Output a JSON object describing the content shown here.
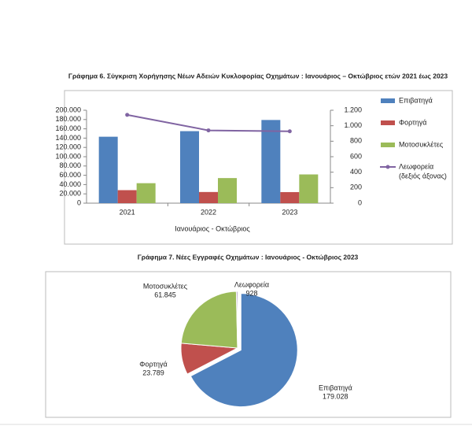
{
  "chart_data": [
    {
      "type": "bar",
      "title": "Γράφημα 6. Σύγκριση Χορήγησης Νέων Αδειών Κυκλοφορίας Οχημάτων : Ιανουάριος –  Οκτώβριος ετών 2021 έως 2023",
      "x_label": "Ιανουάριος - Οκτώβριος",
      "categories": [
        "2021",
        "2022",
        "2023"
      ],
      "series": [
        {
          "name": "Επιβατηγά",
          "color": "#4f81bd",
          "values": [
            143000,
            155000,
            179028
          ]
        },
        {
          "name": "Φορτηγά",
          "color": "#c0504d",
          "values": [
            28000,
            24000,
            23789
          ]
        },
        {
          "name": "Μοτοσυκλέτες",
          "color": "#9bbb59",
          "values": [
            43000,
            54000,
            61845
          ]
        },
        {
          "name": "Λεωφορεία",
          "legend_note": "(δεξιός άξονας)",
          "type": "line",
          "axis": "y2",
          "color": "#8064a2",
          "values": [
            1140,
            940,
            928
          ]
        }
      ],
      "ylim": [
        0,
        200000
      ],
      "yticks": [
        0,
        {
          "value": 20000,
          "label": "20.000"
        },
        {
          "value": 40000,
          "label": "40.000"
        },
        {
          "value": 60000,
          "label": "60.000"
        },
        {
          "value": 80000,
          "label": "80.000"
        },
        {
          "value": 100000,
          "label": "100.000"
        },
        {
          "value": 120000,
          "label": "120.000"
        },
        {
          "value": 140000,
          "label": "140.000"
        },
        {
          "value": 160000,
          "label": "160.000"
        },
        {
          "value": 180000,
          "label": "180.000"
        },
        {
          "value": 200000,
          "label": "200.000"
        }
      ],
      "y2lim": [
        0,
        1200
      ],
      "y2ticks": [
        0,
        200,
        400,
        600,
        800,
        {
          "value": 1000,
          "label": "1.000"
        },
        {
          "value": 1200,
          "label": "1.200"
        }
      ],
      "legend": "right"
    },
    {
      "type": "pie",
      "title": "Γράφημα 7. Νέες Εγγραφές Οχημάτων : Ιανουάριος - Οκτώβριος 2023",
      "categories": [
        "Επιβατηγά",
        "Φορτηγά",
        "Μοτοσυκλέτες",
        "Λεωφορεία"
      ],
      "values": [
        179028,
        23789,
        61845,
        928
      ],
      "value_labels": [
        "179.028",
        "23.789",
        "61.845",
        "928"
      ],
      "colors": [
        "#4f81bd",
        "#c0504d",
        "#9bbb59",
        "#8064a2"
      ]
    }
  ]
}
